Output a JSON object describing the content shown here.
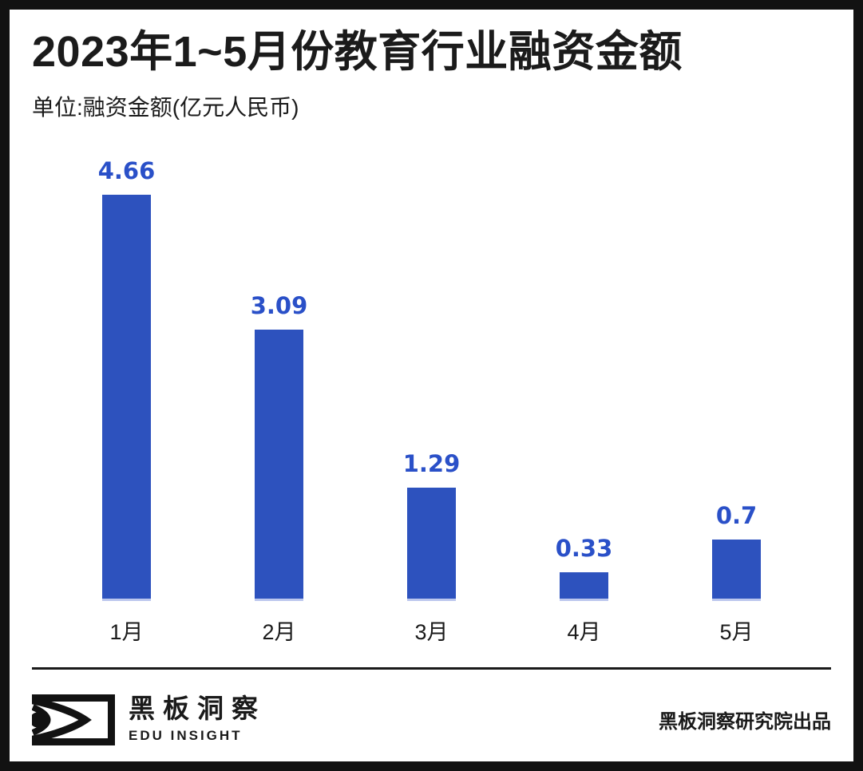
{
  "header": {
    "title": "2023年1~5月份教育行业融资金额",
    "subtitle": "单位:融资金额(亿元人民币)"
  },
  "chart_data": {
    "type": "bar",
    "title": "2023年1~5月份教育行业融资金额",
    "unit_note": "单位:融资金额(亿元人民币)",
    "categories": [
      "1月",
      "2月",
      "3月",
      "4月",
      "5月"
    ],
    "values": [
      4.66,
      3.09,
      1.29,
      0.33,
      0.7
    ],
    "value_labels": [
      "4.66",
      "3.09",
      "1.29",
      "0.33",
      "0.7"
    ],
    "xlabel": "",
    "ylabel": "融资金额(亿元人民币)",
    "ylim": [
      0,
      5
    ],
    "grid": false,
    "legend": false,
    "bar_color": "#2D52BE",
    "value_label_color": "#2A50C8"
  },
  "footer": {
    "logo_icon": "eye-logo-icon",
    "logo_text_cn": "黑板洞察",
    "logo_text_en": "EDU INSIGHT",
    "credit": "黑板洞察研究院出品"
  },
  "colors": {
    "frame": "#121212",
    "text": "#1b1b1b",
    "background": "#ffffff"
  }
}
